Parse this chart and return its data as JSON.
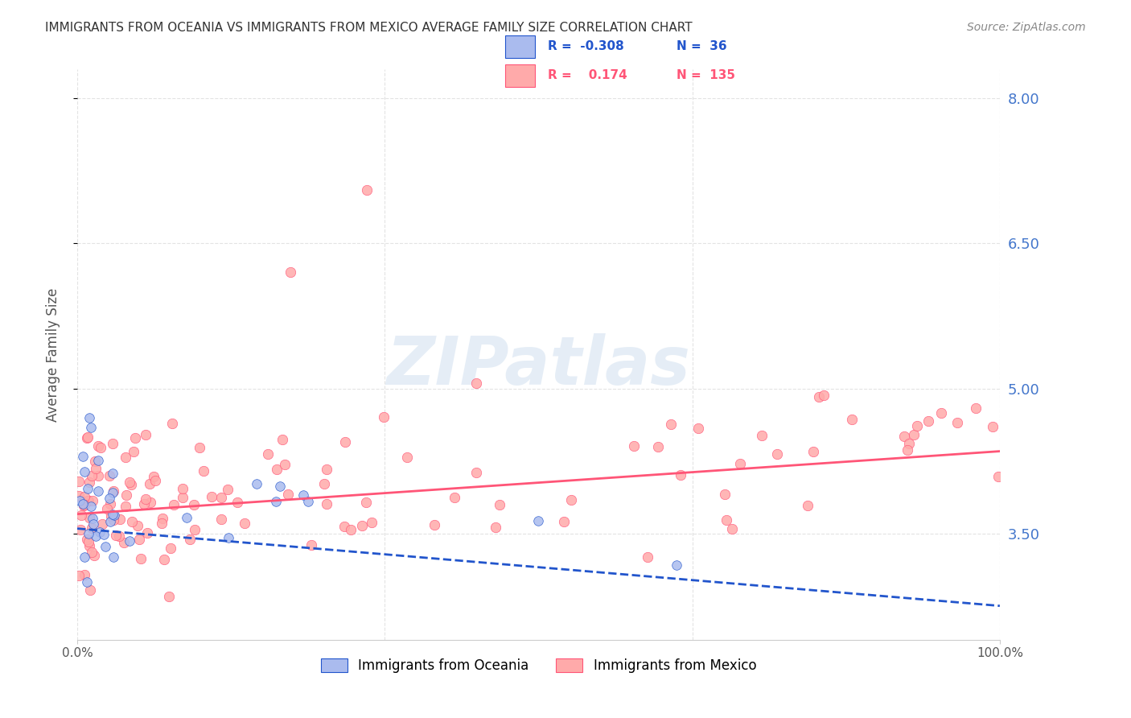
{
  "title": "IMMIGRANTS FROM OCEANIA VS IMMIGRANTS FROM MEXICO AVERAGE FAMILY SIZE CORRELATION CHART",
  "source": "Source: ZipAtlas.com",
  "ylabel": "Average Family Size",
  "xlim": [
    0,
    100
  ],
  "ylim": [
    2.4,
    8.3
  ],
  "yticks": [
    3.5,
    5.0,
    6.5,
    8.0
  ],
  "xticklabels": [
    "0.0%",
    "100.0%"
  ],
  "background_color": "#ffffff",
  "grid_color": "#dddddd",
  "title_color": "#333333",
  "right_axis_color": "#4477cc",
  "legend_R1": "-0.308",
  "legend_N1": "36",
  "legend_R2": "0.174",
  "legend_N2": "135",
  "oceania_color": "#aabbee",
  "mexico_color": "#ffaaaa",
  "oceania_line_color": "#2255cc",
  "mexico_line_color": "#ff5577",
  "oceania_line": {
    "x0": 0,
    "x1": 100,
    "y0": 3.55,
    "y1": 2.75
  },
  "mexico_line": {
    "x0": 0,
    "x1": 100,
    "y0": 3.7,
    "y1": 4.35
  },
  "watermark": "ZIPatlas",
  "watermark_color": "#ccddee",
  "watermark_fontsize": 60
}
